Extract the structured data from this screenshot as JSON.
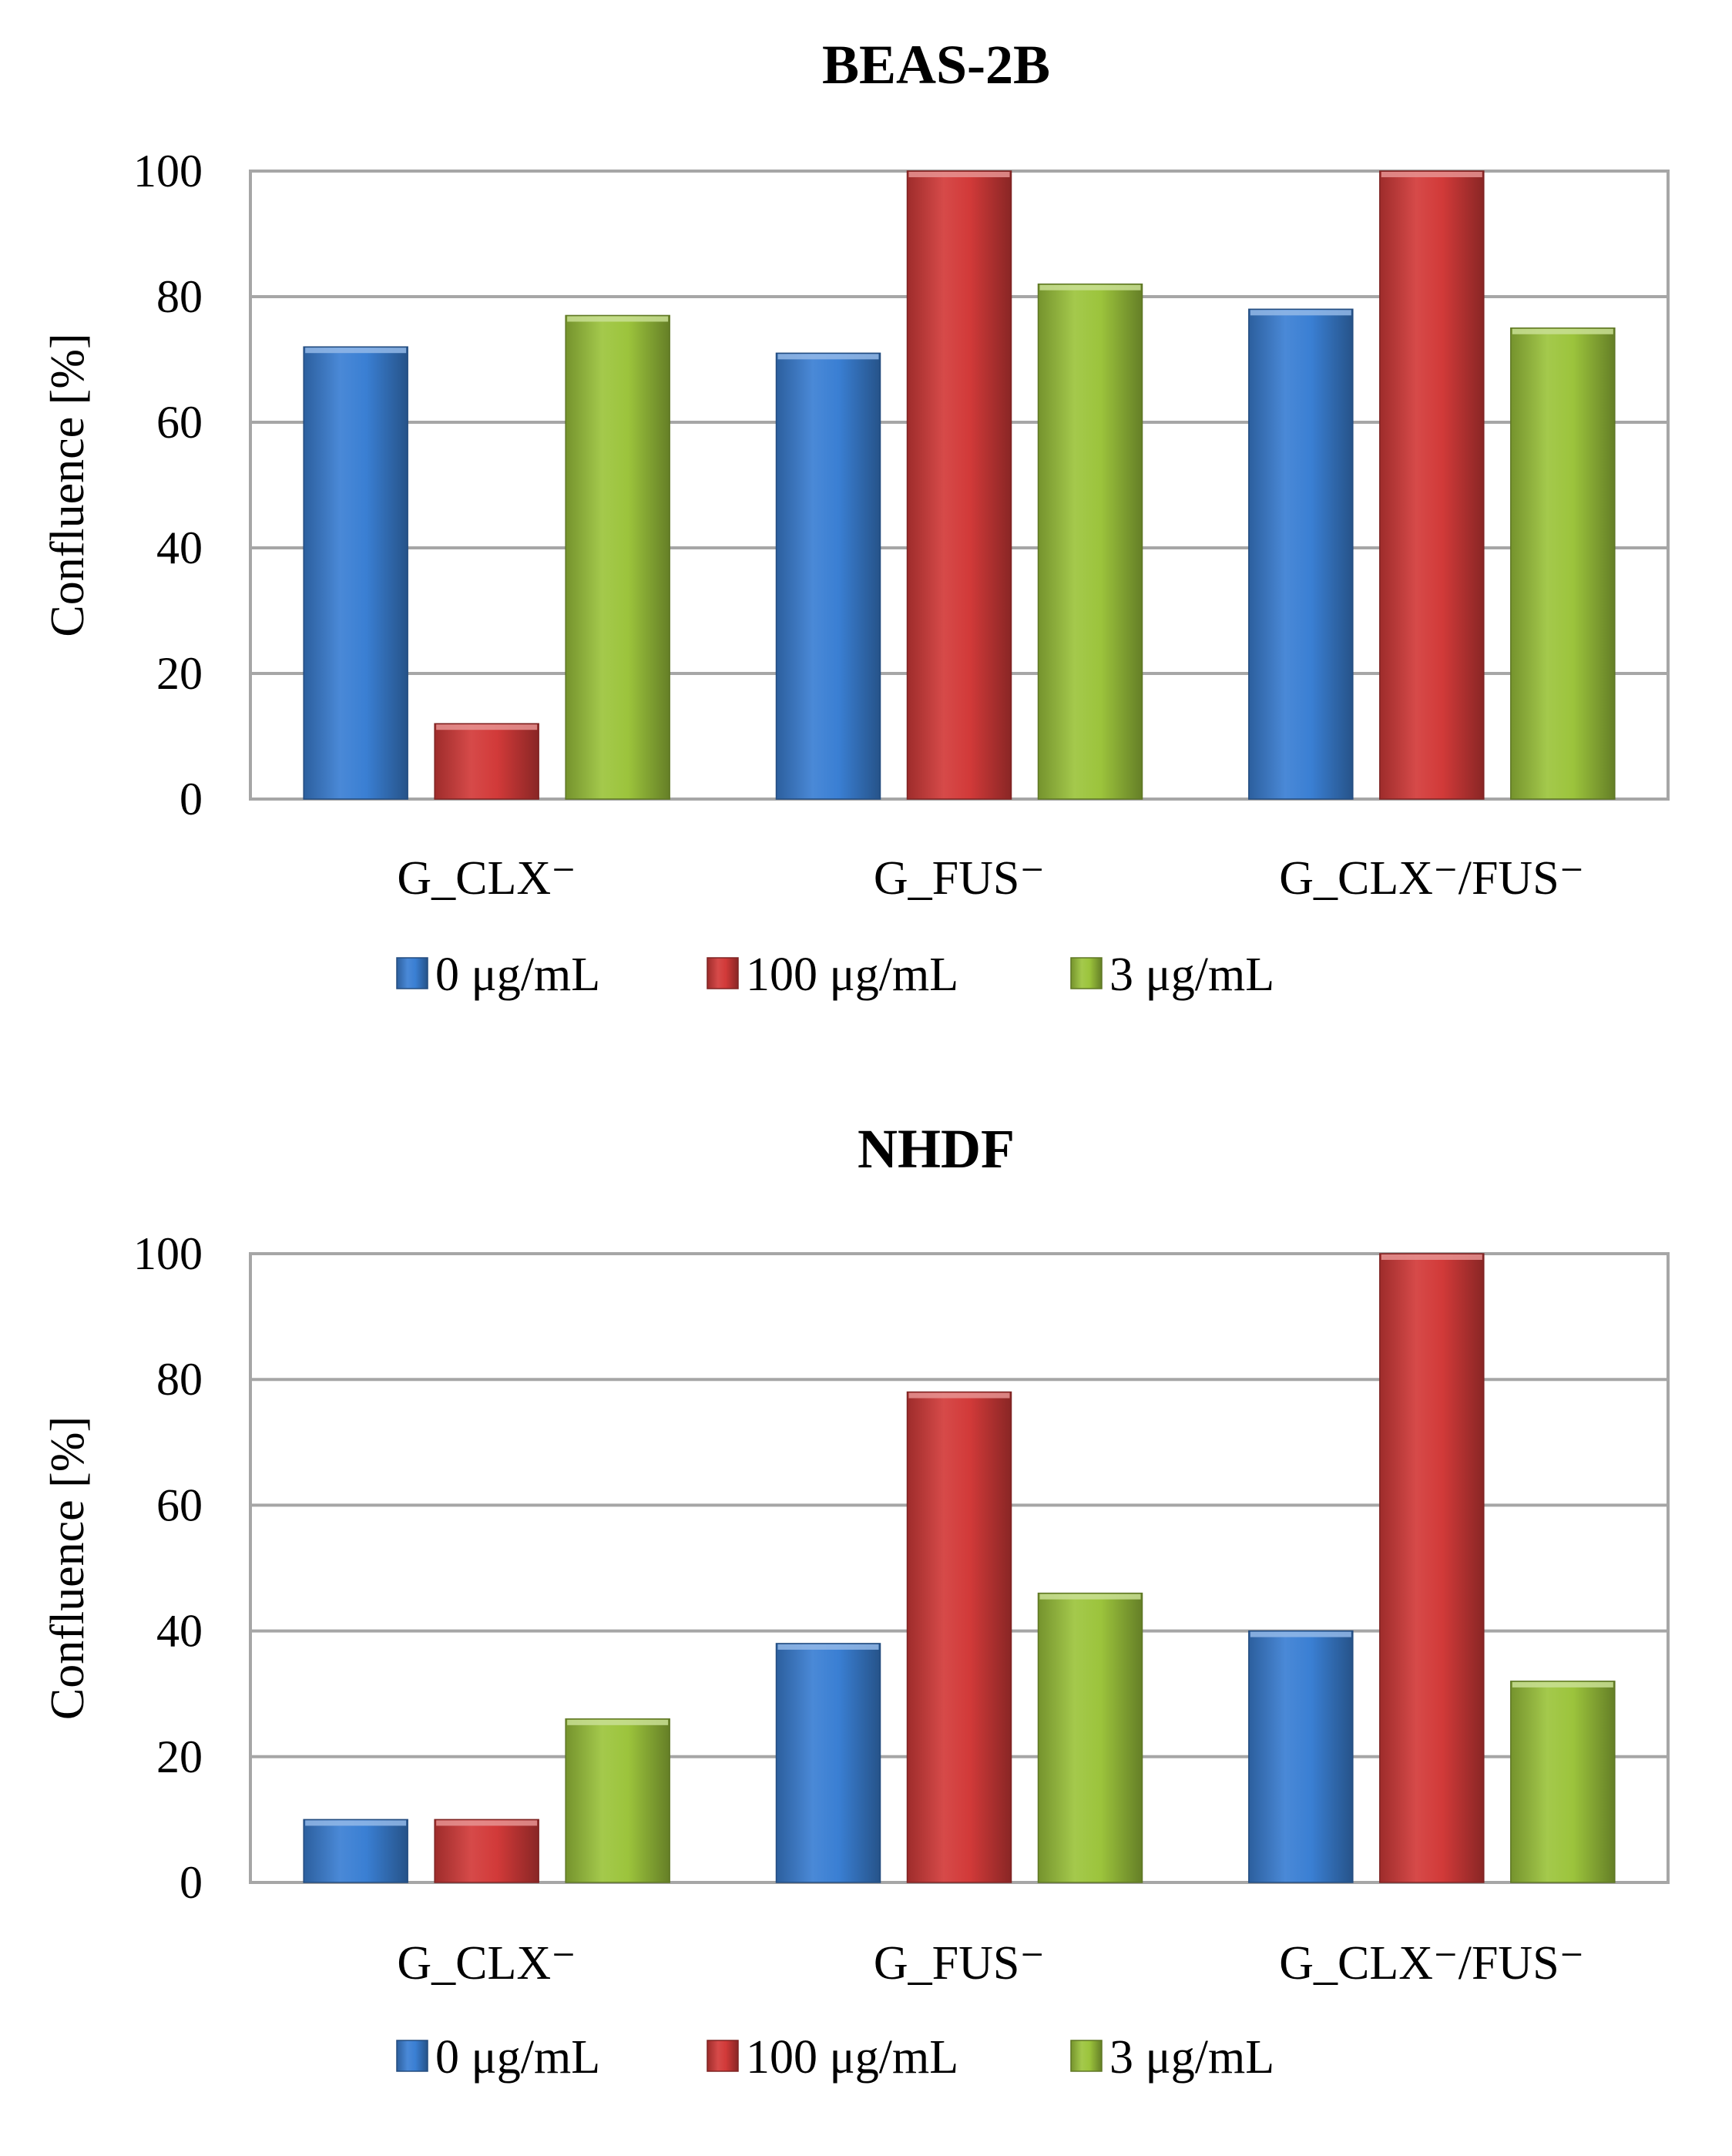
{
  "chart_data": [
    {
      "type": "bar",
      "title": "BEAS-2B",
      "ylabel": "Confluence [%]",
      "xlabel": "",
      "ylim": [
        0,
        100
      ],
      "yticks": [
        0,
        20,
        40,
        60,
        80,
        100
      ],
      "grid": true,
      "legend": "bottom",
      "categories": [
        "G_CLX⁻",
        "G_FUS⁻",
        "G_CLX⁻/FUS⁻"
      ],
      "series": [
        {
          "name": "0 μg/mL",
          "color": "#3a7fd3",
          "values": [
            72,
            71,
            78
          ]
        },
        {
          "name": "100 μg/mL",
          "color": "#d23a39",
          "values": [
            12,
            100,
            100
          ]
        },
        {
          "name": "3 μg/mL",
          "color": "#9cc43c",
          "values": [
            77,
            82,
            75
          ]
        }
      ]
    },
    {
      "type": "bar",
      "title": "NHDF",
      "ylabel": "Confluence [%]",
      "xlabel": "",
      "ylim": [
        0,
        100
      ],
      "yticks": [
        0,
        20,
        40,
        60,
        80,
        100
      ],
      "grid": true,
      "legend": "bottom",
      "categories": [
        "G_CLX⁻",
        "G_FUS⁻",
        "G_CLX⁻/FUS⁻"
      ],
      "series": [
        {
          "name": "0 μg/mL",
          "color": "#3a7fd3",
          "values": [
            10,
            38,
            40
          ]
        },
        {
          "name": "100 μg/mL",
          "color": "#d23a39",
          "values": [
            10,
            78,
            100
          ]
        },
        {
          "name": "3 μg/mL",
          "color": "#9cc43c",
          "values": [
            26,
            46,
            32
          ]
        }
      ]
    }
  ]
}
